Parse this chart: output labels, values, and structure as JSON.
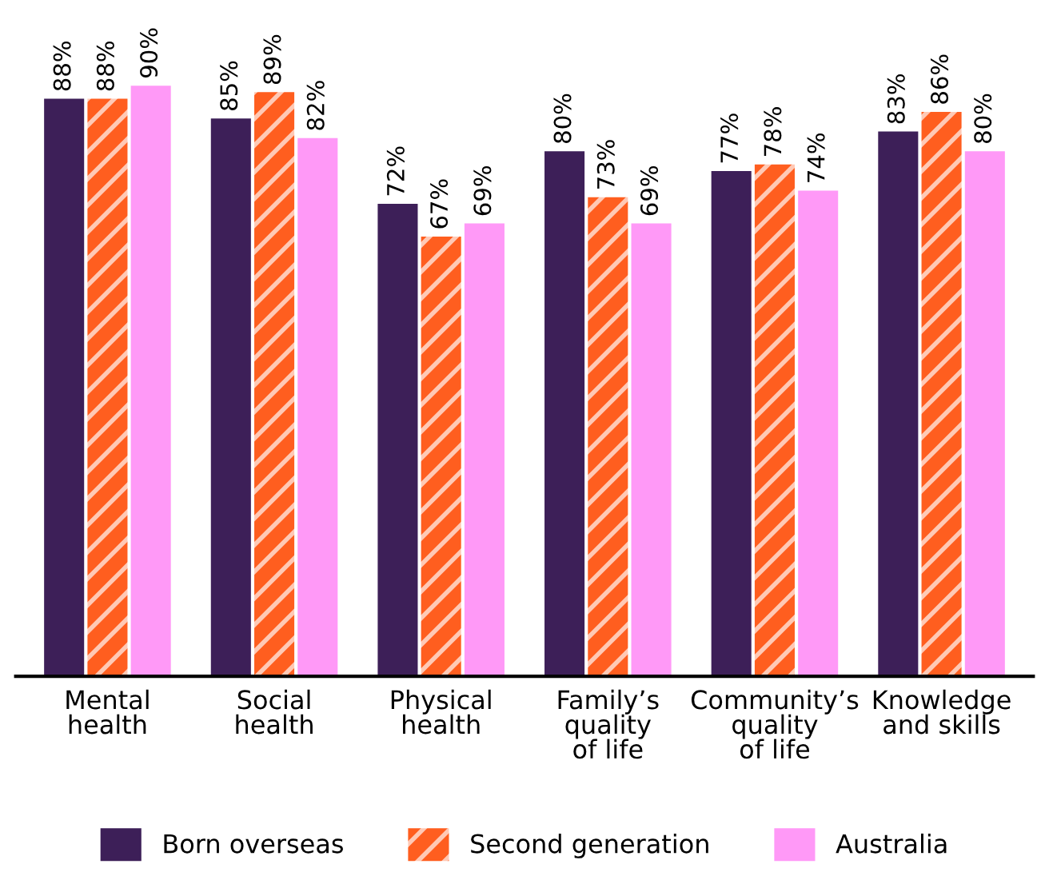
{
  "chart_data": {
    "type": "bar",
    "categories": [
      "Mental\nhealth",
      "Social\nhealth",
      "Physical\nhealth",
      "Family’s\nquality\nof life",
      "Community’s\nquality\nof life",
      "Knowledge\nand skills"
    ],
    "series": [
      {
        "name": "Born overseas",
        "color": "#3d1f58",
        "values": [
          88,
          85,
          72,
          80,
          77,
          83
        ],
        "value_labels": [
          "88%",
          "85%",
          "72%",
          "80%",
          "77%",
          "83%"
        ]
      },
      {
        "name": "Second generation",
        "color": "#ff5e1f",
        "values": [
          88,
          89,
          67,
          73,
          78,
          86
        ],
        "value_labels": [
          "88%",
          "89%",
          "67%",
          "73%",
          "78%",
          "86%"
        ]
      },
      {
        "name": "Australia",
        "color": "#ff99f7",
        "values": [
          90,
          82,
          69,
          69,
          74,
          80
        ],
        "value_labels": [
          "90%",
          "82%",
          "69%",
          "69%",
          "74%",
          "80%"
        ]
      }
    ],
    "legend": "bottom",
    "grid": false
  }
}
